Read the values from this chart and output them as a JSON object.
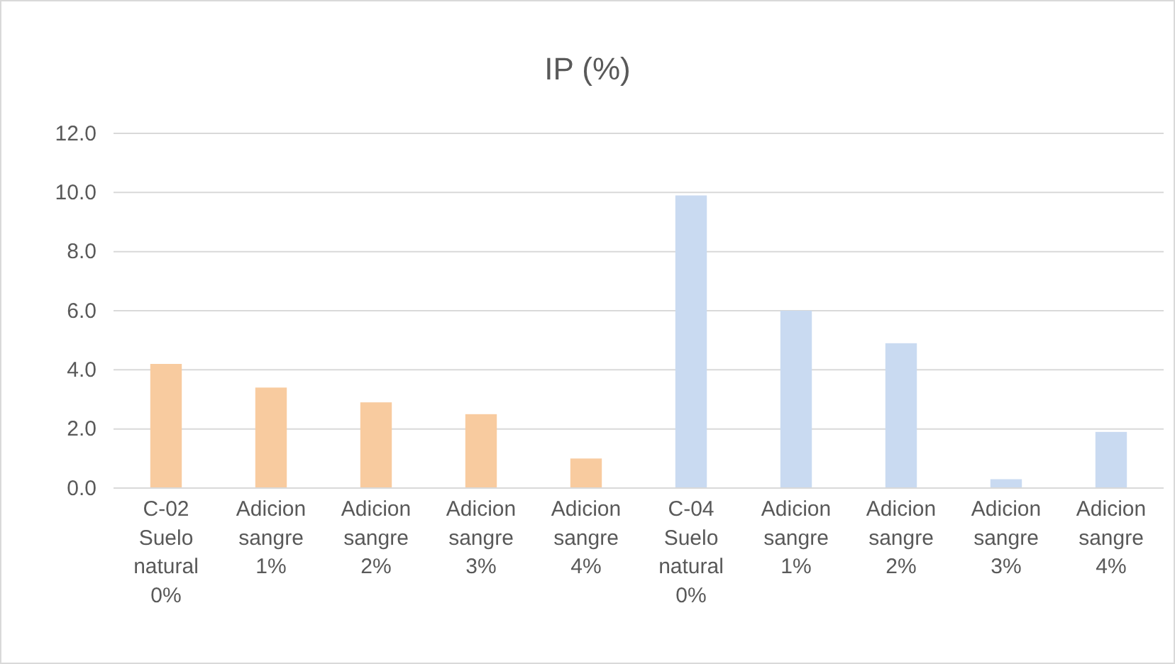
{
  "chart_data": {
    "type": "bar",
    "title": "IP (%)",
    "categories": [
      "C-02 Suelo natural 0%",
      "Adicion sangre 1%",
      "Adicion sangre 2%",
      "Adicion sangre 3%",
      "Adicion sangre 4%",
      "C-04 Suelo natural 0%",
      "Adicion sangre 1%",
      "Adicion sangre 2%",
      "Adicion sangre 3%",
      "Adicion sangre 4%"
    ],
    "values": [
      4.2,
      3.4,
      2.9,
      2.5,
      1.0,
      9.9,
      6.0,
      4.9,
      0.3,
      1.9
    ],
    "colors": [
      "#f8cb9f",
      "#f8cb9f",
      "#f8cb9f",
      "#f8cb9f",
      "#f8cb9f",
      "#c9daf1",
      "#c9daf1",
      "#c9daf1",
      "#c9daf1",
      "#c9daf1"
    ],
    "ylim": [
      0,
      12
    ],
    "yticks": [
      {
        "value": 0,
        "label": "0.0"
      },
      {
        "value": 2,
        "label": "2.0"
      },
      {
        "value": 4,
        "label": "4.0"
      },
      {
        "value": 6,
        "label": "6.0"
      },
      {
        "value": 8,
        "label": "8.0"
      },
      {
        "value": 10,
        "label": "10.0"
      },
      {
        "value": 12,
        "label": "12.0"
      }
    ],
    "grid": true
  }
}
